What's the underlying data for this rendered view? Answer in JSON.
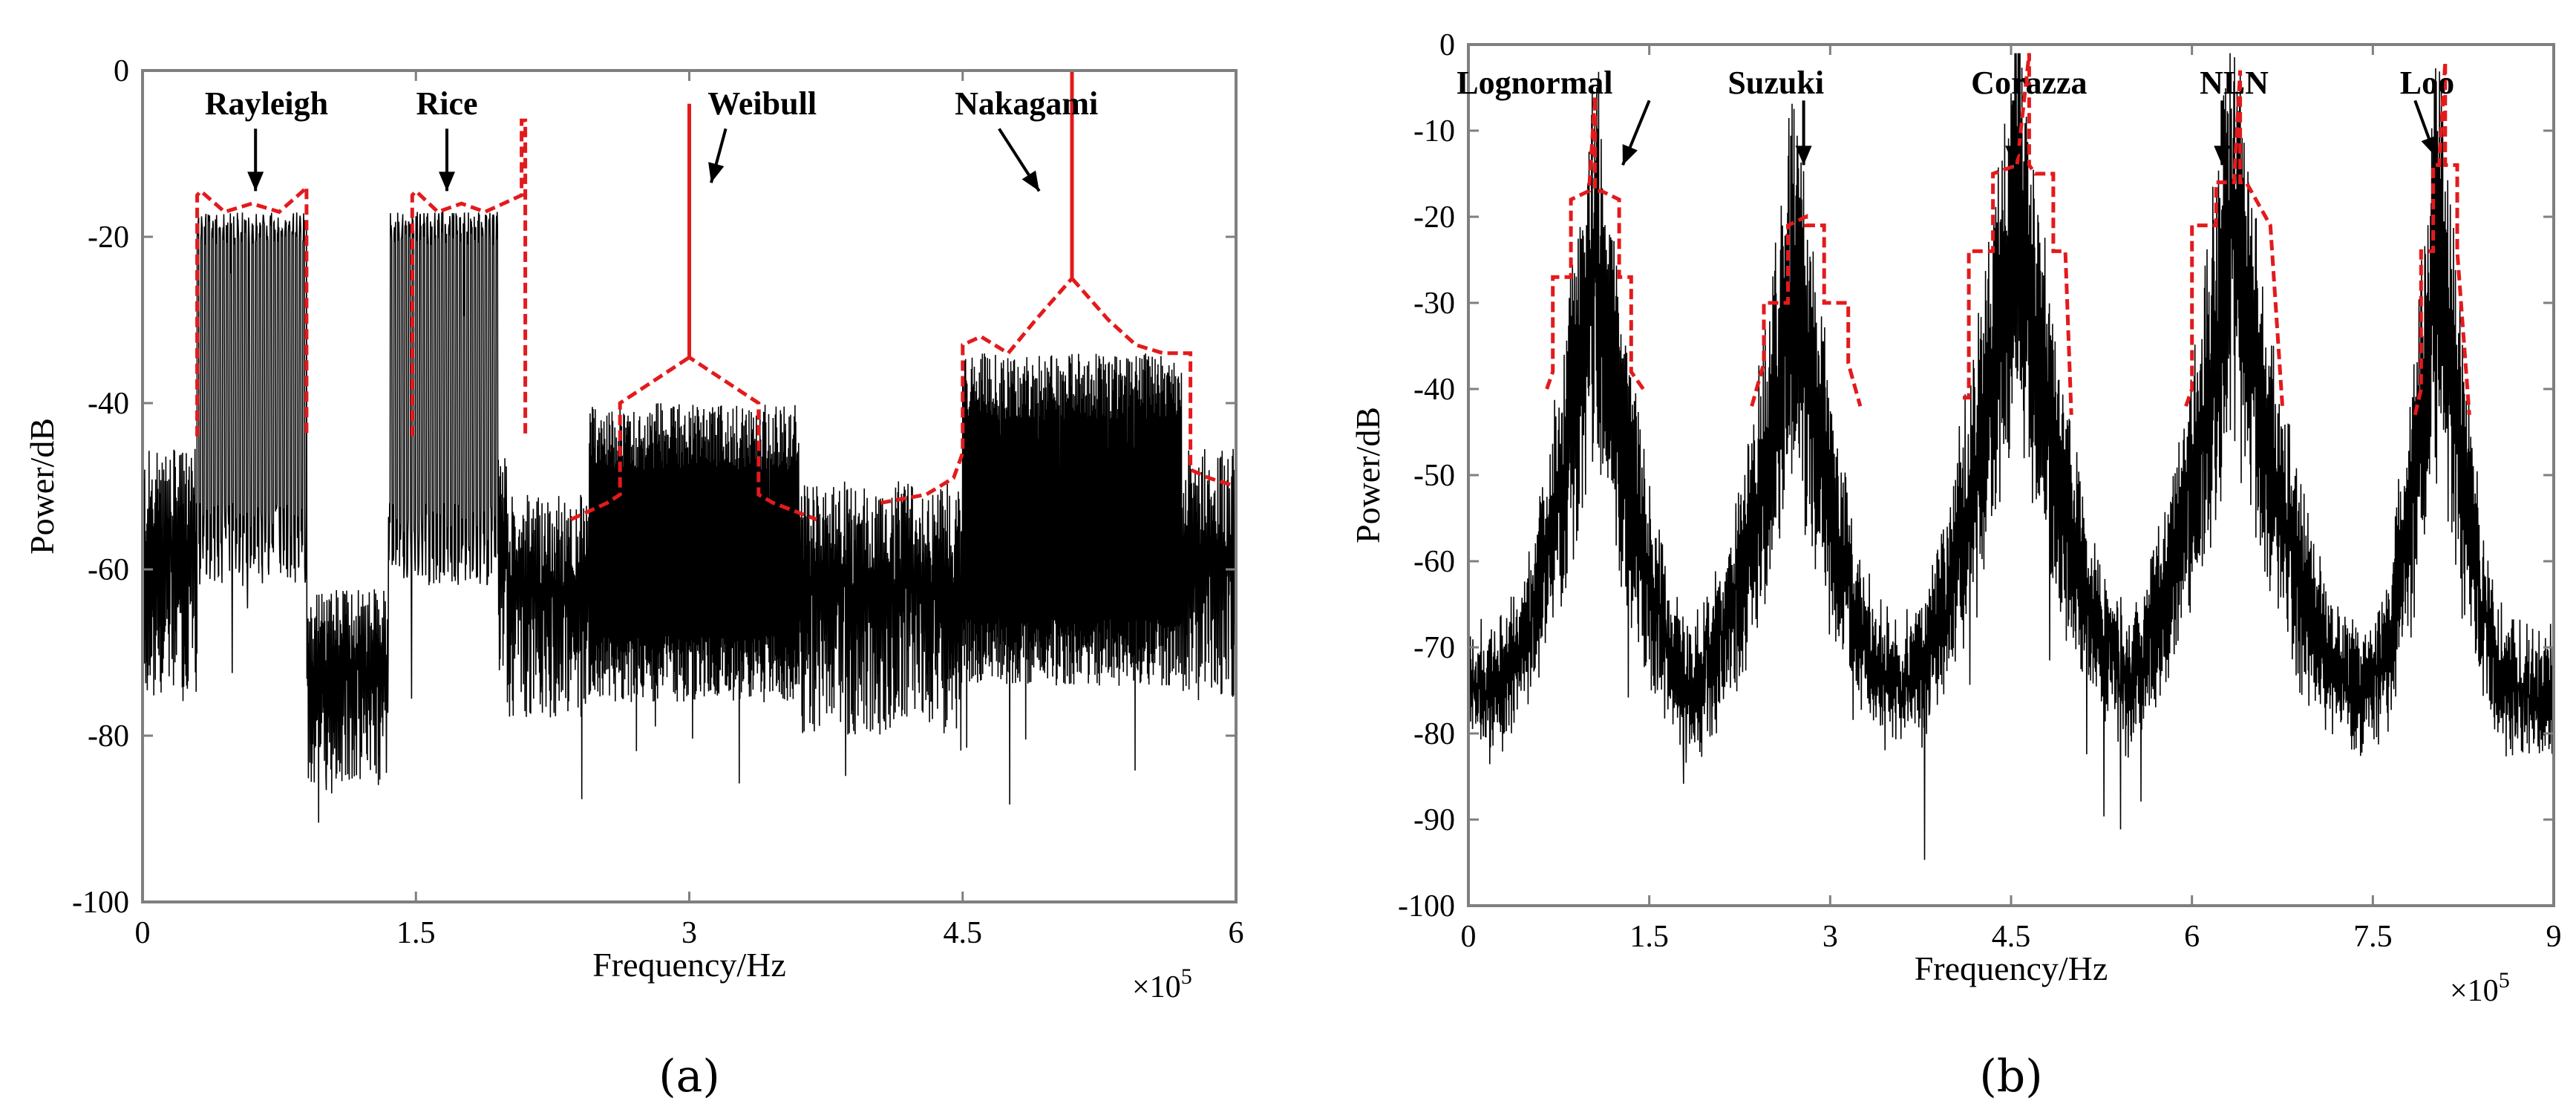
{
  "chart_data": [
    {
      "type": "line",
      "panel_label": "(a)",
      "xlabel": "Frequency/Hz",
      "ylabel": "Power/dB",
      "x_multiplier": "×10",
      "x_multiplier_exp": "5",
      "xlim": [
        0,
        6
      ],
      "ylim": [
        -100,
        0
      ],
      "xticks": [
        0,
        1.5,
        3,
        4.5,
        6
      ],
      "xtick_labels": [
        "0",
        "1.5",
        "3",
        "4.5",
        "6"
      ],
      "yticks": [
        0,
        -20,
        -40,
        -60,
        -80,
        -100
      ],
      "ytick_labels": [
        "0",
        "-20",
        "-40",
        "-60",
        "-80",
        "-100"
      ],
      "bands": [
        {
          "name": "Rayleigh",
          "start": 0.3,
          "end": 0.9,
          "fill_top": -17,
          "fill_bottom": -62,
          "comb": true
        },
        {
          "name": "Rice",
          "start": 1.35,
          "end": 1.95,
          "fill_top": -17,
          "fill_bottom": -62,
          "comb": true
        },
        {
          "name": "Weibull",
          "start": 2.45,
          "end": 3.6,
          "fill_top": -40,
          "fill_bottom": -72,
          "comb": false
        },
        {
          "name": "Nakagami",
          "start": 4.5,
          "end": 5.7,
          "fill_top": -34,
          "fill_bottom": -70,
          "comb": false
        }
      ],
      "envelope": [
        {
          "name": "Rayleigh",
          "x": [
            0.3,
            0.3,
            0.32,
            0.45,
            0.6,
            0.75,
            0.88,
            0.9,
            0.9
          ],
          "y": [
            -44,
            -15,
            -14.5,
            -17,
            -16,
            -17,
            -14.5,
            -14,
            -44
          ]
        },
        {
          "name": "Rice",
          "x": [
            1.48,
            1.48,
            1.5,
            1.62,
            1.75,
            1.88,
            2.08,
            2.08,
            2.1,
            2.1
          ],
          "y": [
            -44,
            -15,
            -14.5,
            -17,
            -16,
            -17,
            -15,
            -6,
            -6,
            -44
          ]
        },
        {
          "name": "Weibull",
          "x": [
            2.35,
            2.55,
            2.62,
            2.62,
            3.0,
            3.0,
            3.0,
            3.38,
            3.38,
            3.46,
            3.7
          ],
          "y": [
            -54,
            -52,
            -51,
            -40,
            -34.5,
            -4,
            -34.5,
            -40,
            -51,
            -52,
            -54
          ]
        },
        {
          "name": "Nakagami",
          "x": [
            4.05,
            4.3,
            4.45,
            4.5,
            4.5,
            4.6,
            4.75,
            4.9,
            5.1,
            5.1,
            5.1,
            5.3,
            5.45,
            5.6,
            5.75,
            5.75,
            5.85,
            6.0
          ],
          "y": [
            -52,
            -51,
            -49,
            -46,
            -33,
            -32,
            -34,
            -30,
            -25,
            0,
            -25,
            -30,
            -33,
            -34,
            -34,
            -48,
            -49,
            -50
          ]
        }
      ],
      "annotations": [
        {
          "text": "Rayleigh",
          "x": 0.68,
          "y": -4,
          "arrow_from": [
            0.62,
            -7
          ],
          "arrow_to": [
            0.62,
            -14.5
          ]
        },
        {
          "text": "Rice",
          "x": 1.67,
          "y": -4,
          "arrow_from": [
            1.67,
            -7
          ],
          "arrow_to": [
            1.67,
            -14.5
          ]
        },
        {
          "text": "Weibull",
          "x": 3.4,
          "y": -4,
          "arrow_from": [
            3.2,
            -7
          ],
          "arrow_to": [
            3.12,
            -13.5
          ]
        },
        {
          "text": "Nakagami",
          "x": 4.85,
          "y": -4,
          "arrow_from": [
            4.7,
            -7
          ],
          "arrow_to": [
            4.92,
            -14.5
          ]
        }
      ]
    },
    {
      "type": "line",
      "panel_label": "(b)",
      "xlabel": "Frequency/Hz",
      "ylabel": "Power/dB",
      "x_multiplier": "×10",
      "x_multiplier_exp": "5",
      "xlim": [
        0,
        9
      ],
      "ylim": [
        -100,
        0
      ],
      "xticks": [
        0,
        1.5,
        3,
        4.5,
        6,
        7.5,
        9
      ],
      "xtick_labels": [
        "0",
        "1.5",
        "3",
        "4.5",
        "6",
        "7.5",
        "9"
      ],
      "yticks": [
        0,
        -10,
        -20,
        -30,
        -40,
        -50,
        -60,
        -70,
        -80,
        -90,
        -100
      ],
      "ytick_labels": [
        "0",
        "-10",
        "-20",
        "-30",
        "-40",
        "-50",
        "-60",
        "-70",
        "-80",
        "-90",
        "-100"
      ],
      "peaks": [
        {
          "name": "Lognormal",
          "center": 1.05,
          "top": -18,
          "width": 0.65
        },
        {
          "name": "Suzuki",
          "center": 2.7,
          "top": -20,
          "width": 0.65
        },
        {
          "name": "Corazza",
          "center": 4.55,
          "top": -14,
          "width": 0.75
        },
        {
          "name": "NLN",
          "center": 6.35,
          "top": -15,
          "width": 0.75
        },
        {
          "name": "Loo",
          "center": 8.05,
          "top": -15,
          "width": 0.45
        }
      ],
      "envelope": [
        {
          "name": "Lognormal",
          "x": [
            0.65,
            0.7,
            0.7,
            0.85,
            0.85,
            1.0,
            1.05,
            1.05,
            1.1,
            1.25,
            1.25,
            1.35,
            1.35,
            1.45
          ],
          "y": [
            -40,
            -38,
            -27,
            -27,
            -18,
            -17,
            -6,
            -17,
            -17,
            -18,
            -27,
            -27,
            -38,
            -40
          ]
        },
        {
          "name": "Suzuki",
          "x": [
            2.35,
            2.45,
            2.45,
            2.65,
            2.65,
            2.8,
            2.8,
            2.95,
            2.95,
            3.15,
            3.15,
            3.25
          ],
          "y": [
            -42,
            -37,
            -30,
            -30,
            -21,
            -20,
            -21,
            -21,
            -30,
            -30,
            -37,
            -42
          ]
        },
        {
          "name": "Corazza",
          "x": [
            4.1,
            4.15,
            4.15,
            4.35,
            4.35,
            4.55,
            4.65,
            4.65,
            4.7,
            4.85,
            4.85,
            4.95,
            5.0
          ],
          "y": [
            -41,
            -41,
            -24,
            -24,
            -15,
            -14,
            -1,
            -14,
            -15,
            -15,
            -24,
            -24,
            -43
          ]
        },
        {
          "name": "NLN",
          "x": [
            5.95,
            6.0,
            6.0,
            6.2,
            6.2,
            6.35,
            6.4,
            6.4,
            6.45,
            6.65,
            6.65,
            6.75
          ],
          "y": [
            -42,
            -40,
            -21,
            -21,
            -16,
            -16,
            -3,
            -16,
            -16,
            -21,
            -21,
            -42
          ]
        },
        {
          "name": "Loo",
          "x": [
            7.85,
            7.9,
            7.9,
            8.0,
            8.0,
            8.05,
            8.1,
            8.1,
            8.2,
            8.2,
            8.3
          ],
          "y": [
            -43,
            -40,
            -24,
            -24,
            -14,
            -14,
            -2,
            -14,
            -14,
            -24,
            -43
          ]
        }
      ],
      "annotations": [
        {
          "text": "Lognormal",
          "x": 0.55,
          "y": -4.5,
          "arrow_from": [
            1.5,
            -6.5
          ],
          "arrow_to": [
            1.28,
            -14
          ]
        },
        {
          "text": "Suzuki",
          "x": 2.55,
          "y": -4.5,
          "arrow_from": [
            2.78,
            -6.5
          ],
          "arrow_to": [
            2.78,
            -14
          ]
        },
        {
          "text": "Corazza",
          "x": 4.65,
          "y": -4.5,
          "arrow_from": [
            4.52,
            -6.5
          ],
          "arrow_to": [
            4.52,
            -14
          ]
        },
        {
          "text": "NLN",
          "x": 6.35,
          "y": -4.5,
          "arrow_from": [
            6.25,
            -6.5
          ],
          "arrow_to": [
            6.25,
            -14
          ]
        },
        {
          "text": "Loo",
          "x": 7.95,
          "y": -4.5,
          "arrow_from": [
            7.85,
            -6.5
          ],
          "arrow_to": [
            8.02,
            -13
          ]
        }
      ]
    }
  ],
  "colors": {
    "signal": "#000000",
    "envelope": "#e31a1c",
    "axes": "#7f7f7f",
    "background": "#ffffff"
  }
}
